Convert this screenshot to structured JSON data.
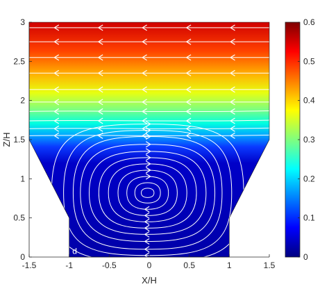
{
  "chart_data": {
    "type": "heatmap",
    "title": "",
    "xlabel": "X/H",
    "ylabel": "Z/H",
    "xlim": [
      -1.5,
      1.5
    ],
    "ylim": [
      0,
      3
    ],
    "xticks": [
      "-1.5",
      "-1",
      "-0.5",
      "0",
      "0.5",
      "1",
      "1.5"
    ],
    "yticks": [
      "0",
      "0.5",
      "1",
      "1.5",
      "2",
      "2.5",
      "3"
    ],
    "colorbar": {
      "min": 0,
      "max": 0.6,
      "ticks": [
        "0",
        "0.1",
        "0.2",
        "0.3",
        "0.4",
        "0.5",
        "0.6"
      ],
      "colormap": "jet"
    },
    "colormap_stops": [
      "#00007f",
      "#0000ff",
      "#007fff",
      "#00ffff",
      "#7fff7f",
      "#ffff00",
      "#ff7f00",
      "#ff0000",
      "#7f0000"
    ],
    "streamline_color": "#ffffff",
    "domain_outline": [
      [
        -1.5,
        1.5
      ],
      [
        -1,
        0.5
      ],
      [
        -1,
        0
      ],
      [
        1,
        0
      ],
      [
        1,
        0.5
      ],
      [
        1.5,
        1.5
      ],
      [
        1.5,
        3
      ],
      [
        -1.5,
        3
      ]
    ],
    "vortex_center": [
      -0.02,
      0.82
    ],
    "grid": false,
    "annotations": [
      "d"
    ]
  }
}
